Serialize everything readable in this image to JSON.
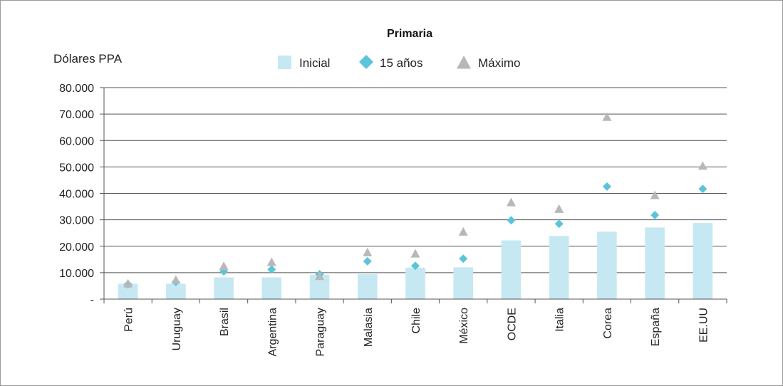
{
  "chart_data": {
    "type": "bar",
    "title": "Primaria",
    "ylabel": "Dólares PPA",
    "xlabel": "",
    "ylim": [
      0,
      80000
    ],
    "yticks": [
      {
        "value": 0,
        "label": "-"
      },
      {
        "value": 10000,
        "label": "10.000"
      },
      {
        "value": 20000,
        "label": "20.000"
      },
      {
        "value": 30000,
        "label": "30.000"
      },
      {
        "value": 40000,
        "label": "40.000"
      },
      {
        "value": 50000,
        "label": "50.000"
      },
      {
        "value": 60000,
        "label": "60.000"
      },
      {
        "value": 70000,
        "label": "70.000"
      },
      {
        "value": 80000,
        "label": "80.000"
      }
    ],
    "grid": true,
    "legend_position": "top-center",
    "categories": [
      "Perú",
      "Uruguay",
      "Brasil",
      "Argentina",
      "Paraguay",
      "Malasia",
      "Chile",
      "México",
      "OCDE",
      "Italia",
      "Corea",
      "España",
      "EE.UU"
    ],
    "series": [
      {
        "name": "Inicial",
        "kind": "bar",
        "color": "#c5e8f2",
        "values": [
          5800,
          5800,
          8200,
          8200,
          9200,
          9400,
          11900,
          12000,
          22200,
          23900,
          25500,
          27100,
          28800
        ]
      },
      {
        "name": "15 años",
        "kind": "marker",
        "marker": "diamond",
        "color": "#5cc4da",
        "values": [
          5600,
          6500,
          10500,
          11200,
          9400,
          14300,
          12600,
          15300,
          29800,
          28500,
          42600,
          31800,
          41700
        ]
      },
      {
        "name": "Máximo",
        "kind": "marker",
        "marker": "triangle",
        "color": "#b8b8b8",
        "values": [
          5900,
          7300,
          12500,
          14000,
          8700,
          17700,
          17200,
          25500,
          36600,
          34100,
          68900,
          39300,
          50400
        ]
      }
    ]
  }
}
